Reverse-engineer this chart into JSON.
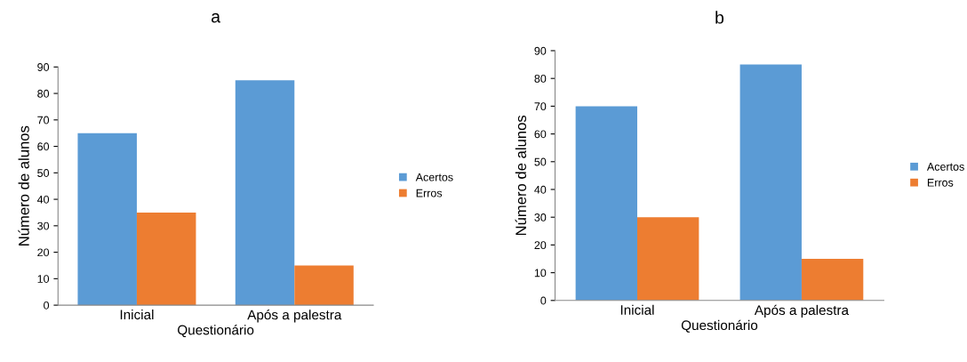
{
  "chart_data": [
    {
      "type": "bar",
      "title": "a",
      "xlabel": "Questionário",
      "ylabel": "Número de alunos",
      "categories": [
        "Inicial",
        "Após a palestra"
      ],
      "series": [
        {
          "name": "Acertos",
          "color": "#5b9bd5",
          "values": [
            65,
            85
          ]
        },
        {
          "name": "Erros",
          "color": "#ed7d31",
          "values": [
            35,
            15
          ]
        }
      ],
      "ylim": [
        0,
        90
      ],
      "yticks": [
        0,
        10,
        20,
        30,
        40,
        50,
        60,
        70,
        80,
        90
      ],
      "grid": false,
      "legend": "right"
    },
    {
      "type": "bar",
      "title": "b",
      "xlabel": "Questionário",
      "ylabel": "Número de alunos",
      "categories": [
        "Inicial",
        "Após a palestra"
      ],
      "series": [
        {
          "name": "Acertos",
          "color": "#5b9bd5",
          "values": [
            70,
            85
          ]
        },
        {
          "name": "Erros",
          "color": "#ed7d31",
          "values": [
            30,
            15
          ]
        }
      ],
      "ylim": [
        0,
        90
      ],
      "yticks": [
        0,
        10,
        20,
        30,
        40,
        50,
        60,
        70,
        80,
        90
      ],
      "grid": false,
      "legend": "right"
    }
  ]
}
